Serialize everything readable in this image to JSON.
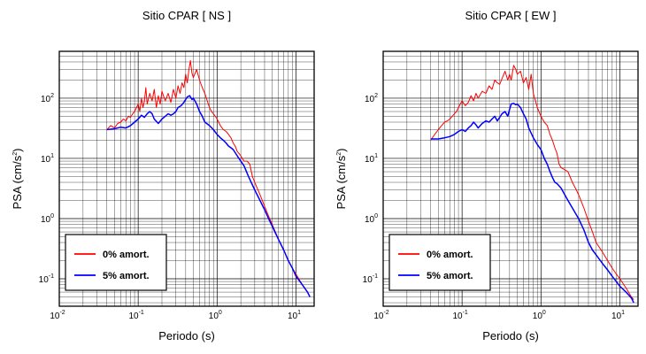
{
  "chart_data": [
    {
      "type": "line",
      "title": "Sitio CPAR [ NS ]",
      "xlabel": "Periodo (s)",
      "ylabel_main": "PSA (cm/s",
      "ylabel_exp": "2",
      "ylabel_close": ")",
      "xscale": "log",
      "yscale": "log",
      "xlim": [
        0.01,
        17
      ],
      "ylim": [
        0.035,
        600
      ],
      "grid": true,
      "legend_position": "bottom-left",
      "xticks": [
        {
          "base": "10",
          "exp": "-2",
          "value": 0.01
        },
        {
          "base": "10",
          "exp": "-1",
          "value": 0.1
        },
        {
          "base": "10",
          "exp": "0",
          "value": 1
        },
        {
          "base": "10",
          "exp": "1",
          "value": 10
        }
      ],
      "yticks": [
        {
          "base": "10",
          "exp": "-1",
          "value": 0.1
        },
        {
          "base": "10",
          "exp": "0",
          "value": 1
        },
        {
          "base": "10",
          "exp": "1",
          "value": 10
        },
        {
          "base": "10",
          "exp": "2",
          "value": 100
        }
      ],
      "series": [
        {
          "name": "0% amort.",
          "color": "#ff0000",
          "x": [
            0.04,
            0.045,
            0.05,
            0.055,
            0.06,
            0.065,
            0.07,
            0.075,
            0.08,
            0.085,
            0.09,
            0.095,
            0.1,
            0.105,
            0.11,
            0.115,
            0.12,
            0.125,
            0.13,
            0.14,
            0.15,
            0.16,
            0.17,
            0.18,
            0.19,
            0.2,
            0.22,
            0.24,
            0.26,
            0.28,
            0.3,
            0.32,
            0.34,
            0.36,
            0.38,
            0.4,
            0.42,
            0.44,
            0.46,
            0.48,
            0.5,
            0.55,
            0.6,
            0.65,
            0.7,
            0.75,
            0.8,
            0.85,
            0.9,
            0.95,
            1.0,
            1.1,
            1.2,
            1.3,
            1.4,
            1.5,
            1.6,
            1.7,
            1.8,
            1.9,
            2.0,
            2.2,
            2.4,
            2.6,
            2.8,
            3.0,
            3.5,
            4.0,
            4.5,
            5.0,
            6.0,
            7.0,
            8.0,
            9.0,
            10.0,
            12.0,
            14.0,
            15.0
          ],
          "y": [
            30,
            35,
            32,
            38,
            40,
            45,
            42,
            50,
            48,
            55,
            60,
            70,
            80,
            60,
            100,
            70,
            90,
            150,
            80,
            120,
            90,
            140,
            70,
            110,
            80,
            130,
            90,
            120,
            85,
            140,
            100,
            160,
            120,
            180,
            150,
            250,
            180,
            300,
            420,
            260,
            220,
            300,
            200,
            150,
            120,
            90,
            70,
            60,
            55,
            50,
            45,
            35,
            30,
            28,
            25,
            22,
            18,
            16,
            13,
            12,
            11,
            9,
            9,
            8,
            5,
            4,
            2.5,
            1.6,
            1.1,
            0.8,
            0.45,
            0.3,
            0.2,
            0.15,
            0.12,
            0.08,
            0.06,
            0.05
          ]
        },
        {
          "name": "5% amort.",
          "color": "#0000ff",
          "x": [
            0.04,
            0.05,
            0.06,
            0.07,
            0.08,
            0.09,
            0.1,
            0.11,
            0.12,
            0.13,
            0.14,
            0.15,
            0.16,
            0.18,
            0.2,
            0.22,
            0.24,
            0.26,
            0.28,
            0.3,
            0.32,
            0.35,
            0.38,
            0.4,
            0.42,
            0.45,
            0.48,
            0.5,
            0.55,
            0.6,
            0.65,
            0.7,
            0.8,
            0.9,
            1.0,
            1.1,
            1.2,
            1.3,
            1.4,
            1.5,
            1.6,
            1.8,
            2.0,
            2.2,
            2.5,
            3.0,
            3.5,
            4.0,
            4.5,
            5.0,
            6.0,
            7.0,
            8.0,
            9.0,
            10.0,
            12.0,
            14.0,
            15.0
          ],
          "y": [
            30,
            31,
            33,
            32,
            35,
            40,
            45,
            52,
            48,
            55,
            60,
            55,
            45,
            38,
            45,
            50,
            55,
            52,
            55,
            60,
            70,
            75,
            85,
            95,
            105,
            110,
            95,
            100,
            80,
            60,
            50,
            40,
            35,
            30,
            25,
            22,
            20,
            18,
            16,
            15,
            14,
            11,
            9,
            7.5,
            5,
            3,
            2,
            1.4,
            1,
            0.75,
            0.45,
            0.3,
            0.2,
            0.15,
            0.11,
            0.08,
            0.06,
            0.05
          ]
        }
      ]
    },
    {
      "type": "line",
      "title": "Sitio CPAR [ EW ]",
      "xlabel": "Periodo (s)",
      "ylabel_main": "PSA (cm/s",
      "ylabel_exp": "2",
      "ylabel_close": ")",
      "xscale": "log",
      "yscale": "log",
      "xlim": [
        0.01,
        17
      ],
      "ylim": [
        0.035,
        600
      ],
      "grid": true,
      "legend_position": "bottom-left",
      "xticks": [
        {
          "base": "10",
          "exp": "-2",
          "value": 0.01
        },
        {
          "base": "10",
          "exp": "-1",
          "value": 0.1
        },
        {
          "base": "10",
          "exp": "0",
          "value": 1
        },
        {
          "base": "10",
          "exp": "1",
          "value": 10
        }
      ],
      "yticks": [
        {
          "base": "10",
          "exp": "-1",
          "value": 0.1
        },
        {
          "base": "10",
          "exp": "0",
          "value": 1
        },
        {
          "base": "10",
          "exp": "1",
          "value": 10
        },
        {
          "base": "10",
          "exp": "2",
          "value": 100
        }
      ],
      "series": [
        {
          "name": "0% amort.",
          "color": "#ff0000",
          "x": [
            0.04,
            0.045,
            0.05,
            0.055,
            0.06,
            0.065,
            0.07,
            0.075,
            0.08,
            0.085,
            0.09,
            0.095,
            0.1,
            0.11,
            0.12,
            0.13,
            0.14,
            0.15,
            0.16,
            0.18,
            0.2,
            0.22,
            0.24,
            0.26,
            0.28,
            0.3,
            0.32,
            0.35,
            0.38,
            0.4,
            0.42,
            0.45,
            0.48,
            0.5,
            0.55,
            0.6,
            0.65,
            0.7,
            0.75,
            0.8,
            0.9,
            1.0,
            1.1,
            1.2,
            1.3,
            1.4,
            1.5,
            1.6,
            1.7,
            1.8,
            2.0,
            2.2,
            2.5,
            2.8,
            3.0,
            3.5,
            4.0,
            4.5,
            5.0,
            6.0,
            7.0,
            8.0,
            9.0,
            10.0,
            12.0,
            14.0,
            15.0
          ],
          "y": [
            20,
            25,
            30,
            35,
            40,
            42,
            45,
            50,
            55,
            60,
            70,
            80,
            90,
            75,
            85,
            110,
            90,
            120,
            100,
            130,
            120,
            160,
            140,
            200,
            180,
            170,
            210,
            280,
            200,
            250,
            200,
            350,
            300,
            250,
            280,
            180,
            220,
            140,
            250,
            120,
            70,
            50,
            40,
            35,
            25,
            20,
            15,
            12,
            8,
            7,
            6.5,
            6,
            4,
            3,
            2.5,
            1.5,
            0.9,
            0.6,
            0.4,
            0.28,
            0.2,
            0.15,
            0.12,
            0.1,
            0.07,
            0.05,
            0.045
          ]
        },
        {
          "name": "5% amort.",
          "color": "#0000ff",
          "x": [
            0.04,
            0.05,
            0.06,
            0.07,
            0.08,
            0.09,
            0.1,
            0.11,
            0.12,
            0.13,
            0.14,
            0.15,
            0.16,
            0.18,
            0.2,
            0.22,
            0.24,
            0.26,
            0.28,
            0.3,
            0.32,
            0.35,
            0.38,
            0.4,
            0.42,
            0.45,
            0.48,
            0.5,
            0.55,
            0.6,
            0.65,
            0.7,
            0.8,
            0.9,
            1.0,
            1.1,
            1.2,
            1.3,
            1.4,
            1.5,
            1.6,
            1.8,
            2.0,
            2.2,
            2.5,
            3.0,
            3.5,
            4.0,
            4.5,
            5.0,
            6.0,
            7.0,
            8.0,
            9.0,
            10.0,
            12.0,
            14.0,
            15.0
          ],
          "y": [
            21,
            21,
            22,
            23,
            25,
            28,
            30,
            28,
            32,
            35,
            40,
            36,
            32,
            38,
            42,
            40,
            45,
            50,
            42,
            48,
            55,
            60,
            50,
            65,
            80,
            82,
            78,
            80,
            70,
            55,
            45,
            32,
            22,
            17,
            14,
            10,
            8,
            6,
            4.8,
            4,
            3.8,
            3.2,
            2.5,
            2,
            1.5,
            1,
            0.65,
            0.4,
            0.3,
            0.25,
            0.18,
            0.14,
            0.11,
            0.09,
            0.075,
            0.06,
            0.048,
            0.04
          ]
        }
      ]
    }
  ]
}
